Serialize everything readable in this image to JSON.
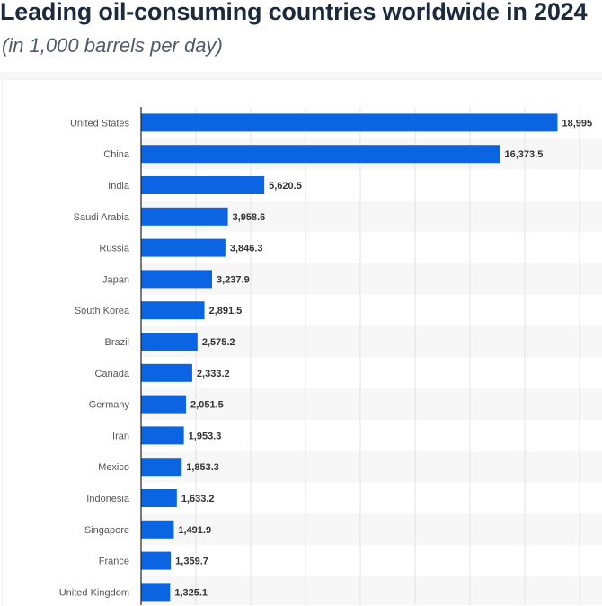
{
  "chart_data": {
    "type": "bar",
    "orientation": "horizontal",
    "title": "Leading oil-consuming countries worldwide in 2024",
    "subtitle": "(in 1,000 barrels per day)",
    "categories": [
      "United States",
      "China",
      "India",
      "Saudi Arabia",
      "Russia",
      "Japan",
      "South Korea",
      "Brazil",
      "Canada",
      "Germany",
      "Iran",
      "Mexico",
      "Indonesia",
      "Singapore",
      "France",
      "United Kingdom"
    ],
    "values": [
      18995,
      16373.5,
      5620.5,
      3958.6,
      3846.3,
      3237.9,
      2891.5,
      2575.2,
      2333.2,
      2051.5,
      1953.3,
      1853.3,
      1633.2,
      1491.9,
      1359.7,
      1325.1
    ],
    "value_labels": [
      "18,995",
      "16,373.5",
      "5,620.5",
      "3,958.6",
      "3,846.3",
      "3,237.9",
      "2,891.5",
      "2,575.2",
      "2,333.2",
      "2,051.5",
      "1,953.3",
      "1,853.3",
      "1,633.2",
      "1,491.9",
      "1,359.7",
      "1,325.1"
    ],
    "xlim": [
      0,
      20000
    ],
    "grid_step": 2500,
    "grid": true,
    "bar_color": "#0b65e3",
    "xlabel": "",
    "ylabel": ""
  }
}
